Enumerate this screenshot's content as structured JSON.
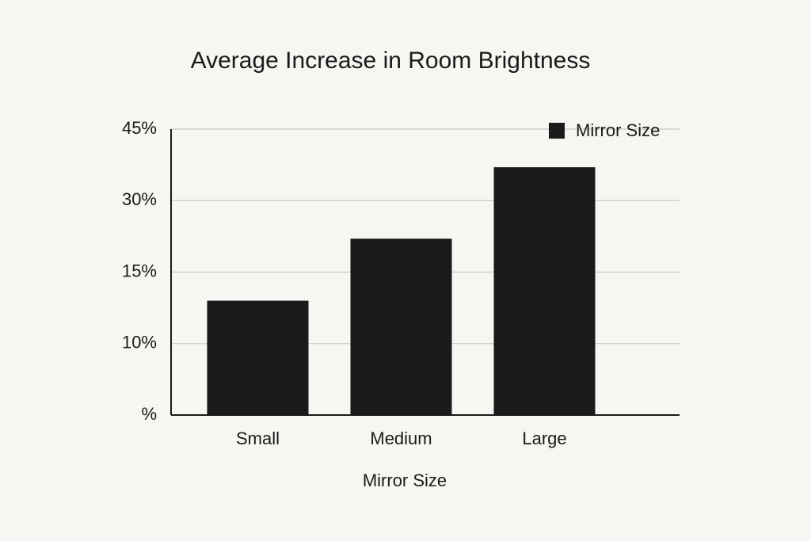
{
  "chart_data": {
    "type": "bar",
    "title": "Average Increase in Room Brightness",
    "x_label": "Mirror Size",
    "categories": [
      "Small",
      "Medium",
      "Large"
    ],
    "series": [
      {
        "name": "Mirror Size",
        "color": "#1a1a1a",
        "values": [
          13,
          22,
          37
        ]
      }
    ],
    "ylim": [
      0,
      45
    ],
    "yticks": [
      {
        "value": 0,
        "label": "%"
      },
      {
        "value": 10,
        "label": "10%"
      },
      {
        "value": 15,
        "label": "15%"
      },
      {
        "value": 30,
        "label": "30%"
      },
      {
        "value": 45,
        "label": "45%"
      }
    ],
    "grid": true,
    "legend": "top-right"
  }
}
